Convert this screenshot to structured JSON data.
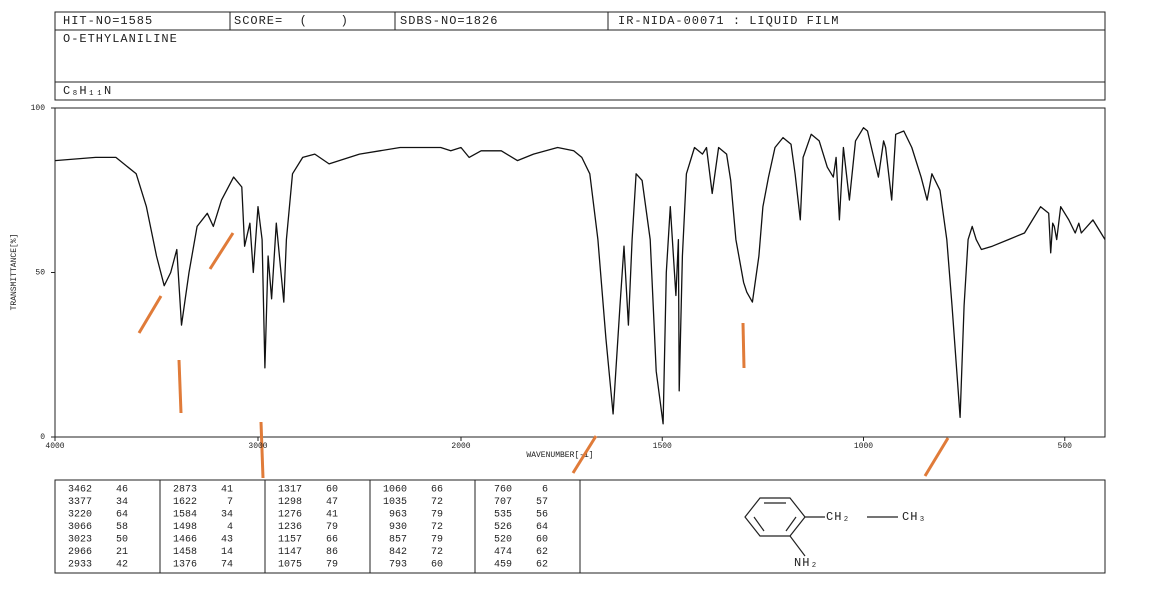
{
  "header": {
    "hit_no": "HIT-NO=1585",
    "score": "SCORE=  (    )",
    "sdbs_no": "SDBS-NO=1826",
    "method": "IR-NIDA-00071 : LIQUID FILM",
    "compound": "O-ETHYLANILINE",
    "formula": "C₈H₁₁N"
  },
  "chart_data": {
    "type": "line",
    "xlabel": "WAVENUMBER[-1]",
    "ylabel": "TRANSMITTANCE[%]",
    "xlim": [
      4000,
      400
    ],
    "x_break": 2000,
    "xticks": [
      4000,
      3000,
      2000,
      1500,
      1000,
      500
    ],
    "ylim": [
      0,
      100
    ],
    "yticks": [
      0,
      50,
      100
    ],
    "color": "#111",
    "x": [
      4000,
      3800,
      3700,
      3600,
      3550,
      3500,
      3462,
      3430,
      3400,
      3377,
      3340,
      3300,
      3250,
      3220,
      3180,
      3120,
      3080,
      3066,
      3040,
      3023,
      3000,
      2980,
      2966,
      2950,
      2933,
      2910,
      2873,
      2860,
      2830,
      2780,
      2720,
      2650,
      2600,
      2500,
      2400,
      2300,
      2200,
      2100,
      2050,
      2000,
      1980,
      1950,
      1900,
      1860,
      1820,
      1760,
      1720,
      1700,
      1680,
      1660,
      1640,
      1622,
      1605,
      1595,
      1584,
      1575,
      1565,
      1550,
      1530,
      1515,
      1498,
      1490,
      1480,
      1466,
      1460,
      1458,
      1450,
      1440,
      1420,
      1400,
      1390,
      1376,
      1360,
      1340,
      1330,
      1317,
      1298,
      1290,
      1276,
      1260,
      1250,
      1236,
      1220,
      1200,
      1180,
      1170,
      1157,
      1150,
      1147,
      1130,
      1110,
      1090,
      1075,
      1068,
      1060,
      1050,
      1035,
      1020,
      1000,
      990,
      963,
      950,
      945,
      930,
      920,
      900,
      880,
      857,
      842,
      830,
      810,
      793,
      780,
      760,
      750,
      740,
      730,
      720,
      707,
      680,
      640,
      600,
      580,
      560,
      540,
      535,
      530,
      526,
      520,
      510,
      490,
      474,
      465,
      459,
      430,
      410,
      400
    ],
    "values": [
      84,
      85,
      85,
      80,
      70,
      55,
      46,
      50,
      57,
      34,
      50,
      64,
      68,
      64,
      72,
      79,
      76,
      58,
      65,
      50,
      70,
      60,
      21,
      55,
      42,
      65,
      41,
      60,
      80,
      85,
      86,
      83,
      84,
      86,
      87,
      88,
      88,
      88,
      87,
      88,
      85,
      87,
      87,
      84,
      86,
      88,
      87,
      85,
      80,
      60,
      30,
      7,
      40,
      58,
      34,
      60,
      80,
      78,
      60,
      20,
      4,
      50,
      70,
      43,
      60,
      14,
      55,
      80,
      88,
      86,
      88,
      74,
      88,
      86,
      78,
      60,
      47,
      44,
      41,
      55,
      70,
      79,
      88,
      91,
      89,
      80,
      66,
      85,
      86,
      92,
      90,
      82,
      79,
      85,
      66,
      88,
      72,
      90,
      94,
      93,
      79,
      90,
      88,
      72,
      92,
      93,
      88,
      79,
      72,
      80,
      75,
      60,
      40,
      6,
      40,
      60,
      64,
      60,
      57,
      58,
      60,
      62,
      66,
      70,
      68,
      56,
      65,
      64,
      60,
      70,
      66,
      62,
      65,
      62,
      66,
      62,
      60
    ]
  },
  "peak_table": [
    [
      [
        3462,
        46
      ],
      [
        3377,
        34
      ],
      [
        3220,
        64
      ],
      [
        3066,
        58
      ],
      [
        3023,
        50
      ],
      [
        2966,
        21
      ],
      [
        2933,
        42
      ]
    ],
    [
      [
        2873,
        41
      ],
      [
        1622,
        7
      ],
      [
        1584,
        34
      ],
      [
        1498,
        4
      ],
      [
        1466,
        43
      ],
      [
        1458,
        14
      ],
      [
        1376,
        74
      ]
    ],
    [
      [
        1317,
        60
      ],
      [
        1298,
        47
      ],
      [
        1276,
        41
      ],
      [
        1236,
        79
      ],
      [
        1157,
        66
      ],
      [
        1147,
        86
      ],
      [
        1075,
        79
      ]
    ],
    [
      [
        1060,
        66
      ],
      [
        1035,
        72
      ],
      [
        963,
        79
      ],
      [
        930,
        72
      ],
      [
        857,
        79
      ],
      [
        842,
        72
      ],
      [
        793,
        60
      ]
    ],
    [
      [
        760,
        6
      ],
      [
        707,
        57
      ],
      [
        535,
        56
      ],
      [
        526,
        64
      ],
      [
        520,
        60
      ],
      [
        474,
        62
      ],
      [
        459,
        62
      ]
    ]
  ],
  "structure": {
    "labels": [
      "CH₂",
      "CH₃",
      "NH₂"
    ]
  }
}
